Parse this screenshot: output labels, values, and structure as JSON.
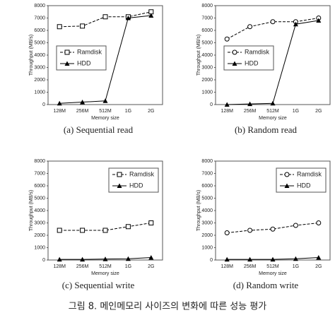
{
  "caption": "그림 8. 메인메모리 사이즈의 변화에 따른 성능 평가",
  "chart_data": [
    {
      "type": "line",
      "caption": "(a) Sequential read",
      "x_label": "Memory size",
      "y_label": "Throughput (MB/s)",
      "categories": [
        "128M",
        "256M",
        "512M",
        "1G",
        "2G"
      ],
      "ylim": [
        0,
        8000
      ],
      "yticks": [
        0,
        1000,
        2000,
        3000,
        4000,
        5000,
        6000,
        7000,
        8000
      ],
      "grid": false,
      "legend": "center left",
      "series": [
        {
          "name": "Ramdisk",
          "color": "#000000",
          "marker": "square",
          "dashed": true,
          "values": [
            6300,
            6350,
            7100,
            7100,
            7500
          ]
        },
        {
          "name": "HDD",
          "color": "#000000",
          "marker": "triangle",
          "dashed": false,
          "values": [
            100,
            200,
            300,
            7000,
            7200
          ]
        }
      ]
    },
    {
      "type": "line",
      "caption": "(b) Random read",
      "x_label": "Memory size",
      "y_label": "Throughput (MB/s)",
      "categories": [
        "128M",
        "256M",
        "512M",
        "1G",
        "2G"
      ],
      "ylim": [
        0,
        8000
      ],
      "yticks": [
        0,
        1000,
        2000,
        3000,
        4000,
        5000,
        6000,
        7000,
        8000
      ],
      "grid": false,
      "legend": "center left",
      "series": [
        {
          "name": "Ramdisk",
          "color": "#000000",
          "marker": "circle",
          "dashed": true,
          "values": [
            5300,
            6300,
            6700,
            6700,
            7000
          ]
        },
        {
          "name": "HDD",
          "color": "#000000",
          "marker": "triangle",
          "dashed": false,
          "values": [
            0,
            50,
            100,
            6500,
            6800
          ]
        }
      ]
    },
    {
      "type": "line",
      "caption": "(c) Sequential write",
      "x_label": "Memory size",
      "y_label": "Throughput (MB/s)",
      "categories": [
        "128M",
        "256M",
        "512M",
        "1G",
        "2G"
      ],
      "ylim": [
        0,
        8000
      ],
      "yticks": [
        0,
        1000,
        2000,
        3000,
        4000,
        5000,
        6000,
        7000,
        8000
      ],
      "grid": false,
      "legend": "upper right",
      "series": [
        {
          "name": "Ramdisk",
          "color": "#000000",
          "marker": "square",
          "dashed": true,
          "values": [
            2400,
            2400,
            2400,
            2700,
            3000
          ]
        },
        {
          "name": "HDD",
          "color": "#000000",
          "marker": "triangle",
          "dashed": false,
          "values": [
            50,
            50,
            80,
            100,
            200
          ]
        }
      ]
    },
    {
      "type": "line",
      "caption": "(d) Random write",
      "x_label": "Memory size",
      "y_label": "Throughput (MB/s)",
      "categories": [
        "128M",
        "256M",
        "512M",
        "1G",
        "2G"
      ],
      "ylim": [
        0,
        8000
      ],
      "yticks": [
        0,
        1000,
        2000,
        3000,
        4000,
        5000,
        6000,
        7000,
        8000
      ],
      "grid": false,
      "legend": "upper right",
      "series": [
        {
          "name": "Ramdisk",
          "color": "#000000",
          "marker": "circle",
          "dashed": true,
          "values": [
            2200,
            2400,
            2500,
            2800,
            3000
          ]
        },
        {
          "name": "HDD",
          "color": "#000000",
          "marker": "triangle",
          "dashed": false,
          "values": [
            50,
            50,
            50,
            100,
            200
          ]
        }
      ]
    }
  ]
}
